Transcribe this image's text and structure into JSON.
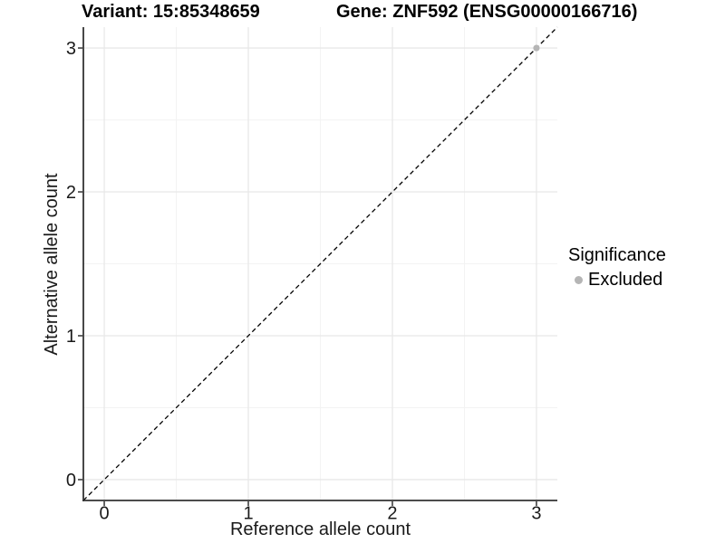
{
  "chart_data": {
    "type": "scatter",
    "title_left": "Variant: 15:85348659",
    "title_right": "Gene: ZNF592 (ENSG00000166716)",
    "xlabel": "Reference allele count",
    "ylabel": "Alternative allele count",
    "xlim": [
      -0.145,
      3.145
    ],
    "ylim": [
      -0.145,
      3.145
    ],
    "xticks": [
      0,
      1,
      2,
      3
    ],
    "yticks": [
      0,
      1,
      2,
      3
    ],
    "minor_gridlines_x": [
      0.5,
      1.5,
      2.5
    ],
    "minor_gridlines_y": [
      0.5,
      1.5,
      2.5
    ],
    "grid": true,
    "legend": {
      "title": "Significance",
      "position": "right",
      "entries": [
        {
          "label": "Excluded",
          "color": "#b5b5b5"
        }
      ]
    },
    "series": [
      {
        "name": "Excluded",
        "color": "#b5b5b5",
        "points": [
          {
            "x": 3,
            "y": 3
          }
        ]
      }
    ],
    "reference_line": {
      "type": "identity",
      "slope": 1,
      "intercept": 0,
      "style": "dashed",
      "color": "#000000"
    },
    "colors": {
      "background": "#ffffff",
      "grid_major": "#e8e8e8",
      "grid_minor": "#f3f3f3",
      "axis_line": "#333333",
      "tick_label": "#1a1a1a",
      "text": "#000000"
    }
  }
}
